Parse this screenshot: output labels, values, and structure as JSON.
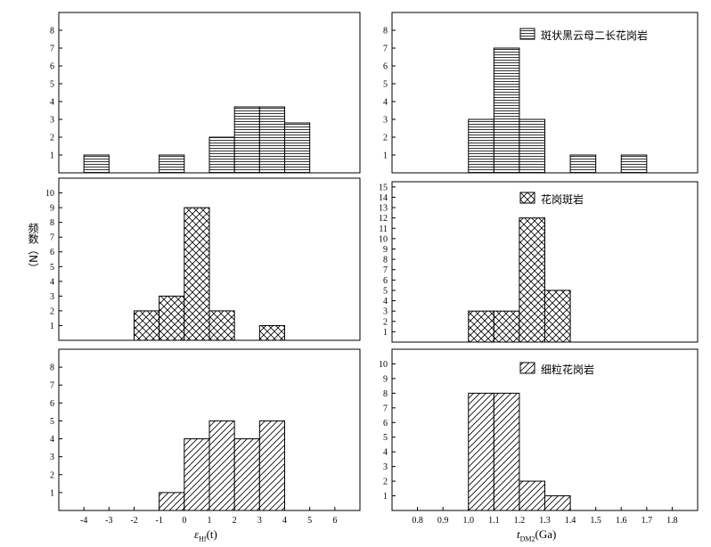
{
  "y_axis_label": "频数（N）",
  "x_axis_left": {
    "symbol": "ε",
    "subscript": "Hf",
    "suffix": "(t)"
  },
  "x_axis_right": {
    "symbol": "t",
    "subscript": "DM2",
    "suffix": "(Ga)"
  },
  "chart_data": [
    {
      "type": "bar",
      "panel": "top-left",
      "pattern": "horizontal-lines",
      "xlim": [
        -5,
        7
      ],
      "ylim": [
        0,
        9
      ],
      "bins": [
        [
          -4,
          -3
        ],
        [
          -1,
          0
        ],
        [
          1,
          2
        ],
        [
          2,
          3
        ],
        [
          3,
          4
        ],
        [
          4,
          5
        ]
      ],
      "values": [
        1,
        1,
        2,
        3.7,
        3.7,
        2.8
      ],
      "yticks": [
        1,
        2,
        3,
        4,
        5,
        6,
        7,
        8
      ],
      "xticks": []
    },
    {
      "type": "bar",
      "panel": "top-right",
      "pattern": "horizontal-lines",
      "xlim": [
        0.7,
        1.9
      ],
      "ylim": [
        0,
        9
      ],
      "bins": [
        [
          1.0,
          1.1
        ],
        [
          1.1,
          1.2
        ],
        [
          1.2,
          1.3
        ],
        [
          1.4,
          1.5
        ],
        [
          1.6,
          1.7
        ]
      ],
      "values": [
        3,
        7,
        3,
        1,
        1
      ],
      "legend": "斑状黑云母二长花岗岩",
      "yticks": [
        1,
        2,
        3,
        4,
        5,
        6,
        7,
        8
      ],
      "xticks": []
    },
    {
      "type": "bar",
      "panel": "middle-left",
      "pattern": "crosshatch",
      "xlim": [
        -5,
        7
      ],
      "ylim": [
        0,
        11
      ],
      "bins": [
        [
          -2,
          -1
        ],
        [
          -1,
          0
        ],
        [
          0,
          1
        ],
        [
          1,
          2
        ],
        [
          3,
          4
        ]
      ],
      "values": [
        2,
        3,
        9,
        2,
        1
      ],
      "yticks": [
        1,
        2,
        3,
        4,
        5,
        6,
        7,
        8,
        9,
        10
      ],
      "xticks": []
    },
    {
      "type": "bar",
      "panel": "middle-right",
      "pattern": "crosshatch",
      "xlim": [
        0.7,
        1.9
      ],
      "ylim": [
        0,
        15.5
      ],
      "bins": [
        [
          1.0,
          1.1
        ],
        [
          1.1,
          1.2
        ],
        [
          1.2,
          1.3
        ],
        [
          1.3,
          1.4
        ]
      ],
      "values": [
        3,
        3,
        12,
        5
      ],
      "legend": "花岗斑岩",
      "yticks": [
        1,
        2,
        3,
        4,
        5,
        6,
        7,
        8,
        9,
        10,
        11,
        12,
        13,
        14,
        15
      ],
      "xticks": []
    },
    {
      "type": "bar",
      "panel": "bottom-left",
      "pattern": "diagonal",
      "xlim": [
        -5,
        7
      ],
      "ylim": [
        0,
        9
      ],
      "bins": [
        [
          -1,
          0
        ],
        [
          0,
          1
        ],
        [
          1,
          2
        ],
        [
          2,
          3
        ],
        [
          3,
          4
        ]
      ],
      "values": [
        1,
        4,
        5,
        4,
        5
      ],
      "yticks": [
        1,
        2,
        3,
        4,
        5,
        6,
        7,
        8
      ],
      "ytick_labels": [
        "1",
        "2",
        "3",
        "4",
        "5",
        "6",
        "7",
        "8"
      ],
      "xticks": [
        -4,
        -3,
        -2,
        -1,
        0,
        1,
        2,
        3,
        4,
        5,
        6
      ]
    },
    {
      "type": "bar",
      "panel": "bottom-right",
      "pattern": "diagonal",
      "xlim": [
        0.7,
        1.9
      ],
      "ylim": [
        0,
        11
      ],
      "bins": [
        [
          1.0,
          1.1
        ],
        [
          1.1,
          1.2
        ],
        [
          1.2,
          1.3
        ],
        [
          1.3,
          1.4
        ]
      ],
      "values": [
        8,
        8,
        2,
        1
      ],
      "legend": "细粒花岗岩",
      "yticks": [
        1,
        2,
        3,
        4,
        5,
        6,
        7,
        8,
        9,
        10
      ],
      "xticks": [
        0.8,
        0.9,
        1.0,
        1.1,
        1.2,
        1.3,
        1.4,
        1.5,
        1.6,
        1.7,
        1.8
      ],
      "xtick_labels": [
        "0.8",
        "0.9",
        "1.0",
        "1.1",
        "1.2",
        "1.3",
        "1.4",
        "1.5",
        "1.6",
        "1.7",
        "1.8"
      ]
    }
  ]
}
